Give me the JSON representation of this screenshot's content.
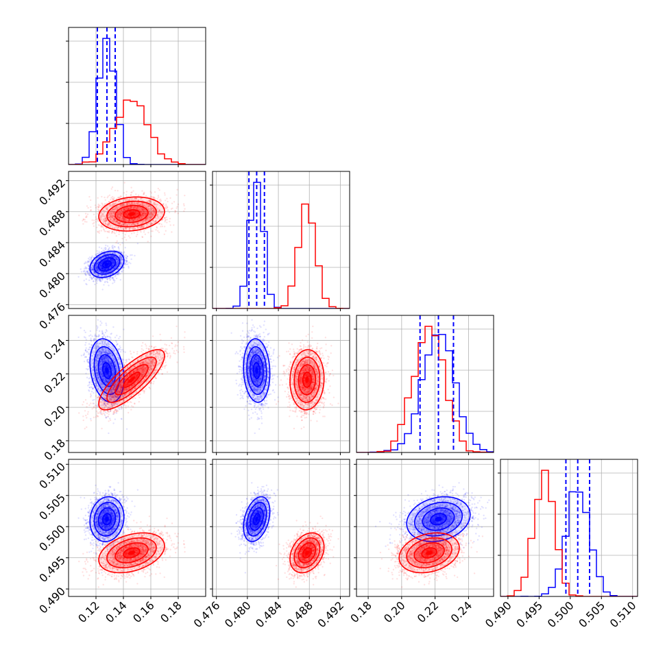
{
  "chart_data": {
    "type": "corner",
    "params": [
      {
        "range": [
          0.1,
          0.2
        ],
        "ticks": [
          0.12,
          0.14,
          0.16,
          0.18
        ],
        "tick_labels": [
          "0.12",
          "0.14",
          "0.16",
          "0.18"
        ]
      },
      {
        "range": [
          0.4755,
          0.4932
        ],
        "ticks": [
          0.476,
          0.48,
          0.484,
          0.488,
          0.492
        ],
        "tick_labels": [
          "0.476",
          "0.480",
          "0.484",
          "0.488",
          "0.492"
        ]
      },
      {
        "range": [
          0.173,
          0.255
        ],
        "ticks": [
          0.18,
          0.2,
          0.22,
          0.24
        ],
        "tick_labels": [
          "0.18",
          "0.20",
          "0.22",
          "0.24"
        ]
      },
      {
        "range": [
          0.4888,
          0.5108
        ],
        "ticks": [
          0.49,
          0.495,
          0.5,
          0.505,
          0.51
        ],
        "tick_labels": [
          "0.490",
          "0.495",
          "0.500",
          "0.505",
          "0.510"
        ]
      }
    ],
    "series": [
      {
        "color": "#0000ff",
        "mean": [
          0.128,
          0.4812,
          0.222,
          0.5012
        ],
        "sd": [
          0.0062,
          0.00085,
          0.0095,
          0.0018
        ],
        "corr": [
          [
            1,
            0.3,
            -0.25,
            0.1
          ],
          [
            0.3,
            1,
            -0.1,
            0.35
          ],
          [
            -0.25,
            -0.1,
            1,
            0.2
          ],
          [
            0.1,
            0.35,
            0.2,
            1
          ]
        ],
        "quantiles": [
          [
            0.121,
            0.128,
            0.134
          ],
          [
            0.4802,
            0.4812,
            0.4822
          ],
          [
            0.211,
            0.222,
            0.231
          ],
          [
            0.4993,
            0.5012,
            0.5031
          ]
        ]
      },
      {
        "color": "#ff0000",
        "mean": [
          0.146,
          0.4877,
          0.2165,
          0.4958
        ],
        "sd": [
          0.012,
          0.0011,
          0.009,
          0.0016
        ],
        "corr": [
          [
            1,
            0.15,
            0.8,
            0.35
          ],
          [
            0.15,
            1,
            0.05,
            0.3
          ],
          [
            0.8,
            0.05,
            1,
            0.25
          ],
          [
            0.35,
            0.3,
            0.25,
            1
          ]
        ],
        "quantiles": []
      }
    ],
    "xlabel": "",
    "ylabel": "",
    "title": "",
    "grid": true
  }
}
